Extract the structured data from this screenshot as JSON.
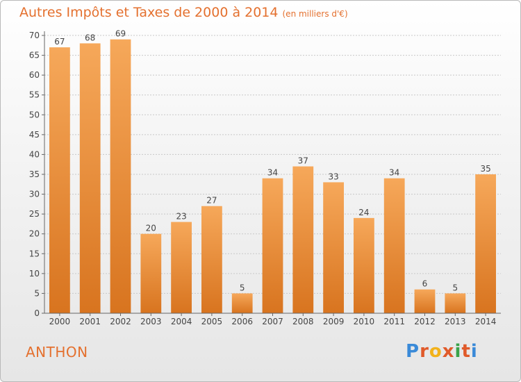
{
  "header": {
    "title": "Autres Impôts et Taxes de 2000 à 2014",
    "subtitle": "(en milliers d'€)"
  },
  "footer": {
    "commune": "ANTHON",
    "logo_text": "Proxiti"
  },
  "colors": {
    "bar_light": "#f6a85a",
    "bar_dark": "#d8741f",
    "title": "#e4702e",
    "grid": "#c8c8c8",
    "logo": [
      "#3a8ad8",
      "#e05a2a",
      "#f2b21b",
      "#e05a2a",
      "#3aa34a",
      "#e05a2a",
      "#3a8ad8"
    ]
  },
  "chart_data": {
    "type": "bar",
    "title": "Autres Impôts et Taxes de 2000 à 2014",
    "subtitle": "(en milliers d'€)",
    "categories": [
      "2000",
      "2001",
      "2002",
      "2003",
      "2004",
      "2005",
      "2006",
      "2007",
      "2008",
      "2009",
      "2010",
      "2011",
      "2012",
      "2013",
      "2014"
    ],
    "values": [
      67,
      68,
      69,
      20,
      23,
      27,
      5,
      34,
      37,
      33,
      24,
      34,
      6,
      5,
      35
    ],
    "ylim": [
      0,
      70
    ],
    "yticks": [
      0,
      5,
      10,
      15,
      20,
      25,
      30,
      35,
      40,
      45,
      50,
      55,
      60,
      65,
      70
    ],
    "grid": true,
    "data_labels": true
  }
}
